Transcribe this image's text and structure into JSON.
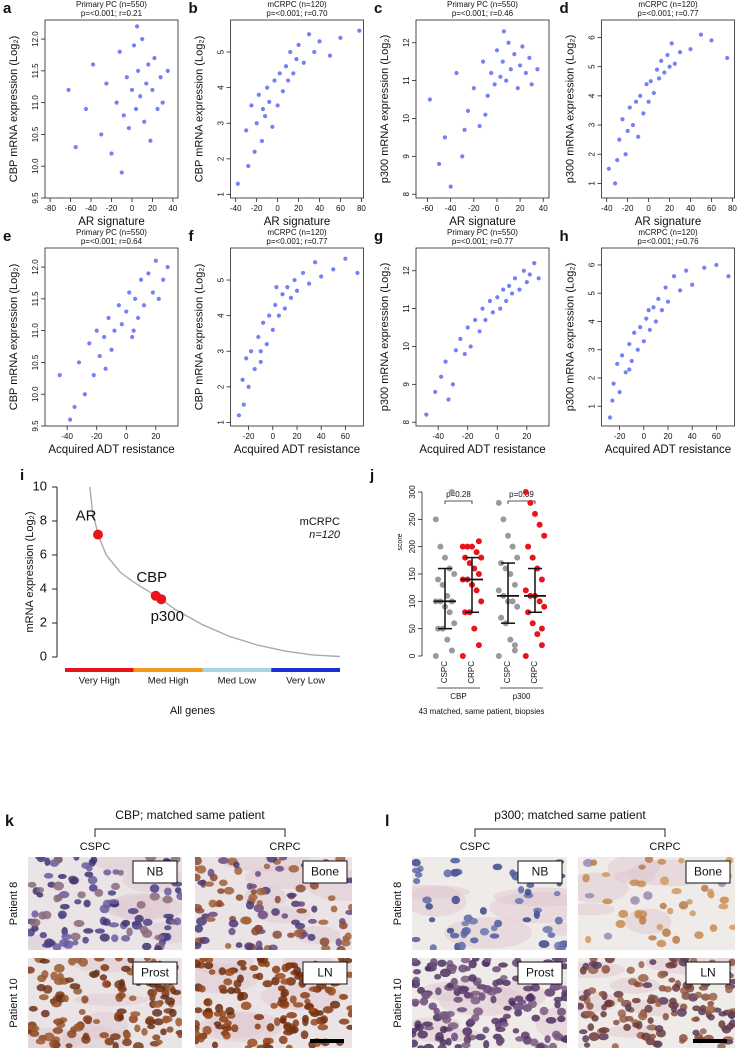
{
  "chart_data": [
    {
      "type": "scatter",
      "letter": "a",
      "title": "Primary PC (n=550)",
      "subtitle": "p=<0.001; r=0.21",
      "xlabel": "AR signature",
      "ylabel": "CBP mRNA expression (Log₂)",
      "color": "#5a6cf0",
      "xlim": [
        -85,
        45
      ],
      "ylim": [
        9.5,
        12.3
      ],
      "xticks": [
        -80,
        -60,
        -40,
        -20,
        0,
        20,
        40
      ],
      "yticks": [
        9.5,
        {
          "value": 10,
          "label": "10.0"
        },
        10.5,
        {
          "value": 11,
          "label": "11.0"
        },
        11.5,
        {
          "value": 12,
          "label": "12.0"
        }
      ],
      "x": [
        -62,
        -45,
        -38,
        -30,
        -25,
        -20,
        -15,
        -12,
        -8,
        -5,
        -3,
        0,
        2,
        4,
        6,
        8,
        10,
        12,
        14,
        16,
        18,
        20,
        22,
        25,
        28,
        30,
        35,
        -55,
        -10,
        5
      ],
      "values": [
        11.2,
        10.9,
        11.6,
        10.5,
        11.3,
        10.2,
        11.0,
        11.8,
        10.8,
        11.4,
        10.6,
        11.2,
        11.9,
        10.9,
        11.5,
        11.1,
        12.0,
        10.7,
        11.3,
        11.6,
        10.4,
        11.2,
        11.7,
        10.9,
        11.4,
        11.0,
        11.5,
        10.3,
        9.9,
        12.2
      ]
    },
    {
      "type": "scatter",
      "letter": "b",
      "title": "mCRPC (n=120)",
      "subtitle": "p=<0.001; r=0.70",
      "xlabel": "AR signature",
      "ylabel": "CBP mRNA expression (Log₂)",
      "color": "#5a6cf0",
      "xlim": [
        -45,
        82
      ],
      "ylim": [
        0.9,
        5.9
      ],
      "xticks": [
        -40,
        -20,
        0,
        20,
        40,
        60,
        80
      ],
      "yticks": [
        1,
        2,
        3,
        4,
        5
      ],
      "x": [
        -38,
        -30,
        -25,
        -22,
        -20,
        -18,
        -15,
        -12,
        -10,
        -8,
        -5,
        -3,
        0,
        2,
        5,
        8,
        10,
        12,
        15,
        18,
        20,
        25,
        30,
        35,
        40,
        50,
        60,
        78,
        -28,
        -14
      ],
      "values": [
        1.3,
        2.8,
        3.5,
        2.2,
        3.0,
        3.8,
        2.5,
        3.2,
        4.0,
        3.6,
        2.9,
        4.2,
        3.5,
        4.4,
        3.9,
        4.6,
        4.2,
        5.0,
        4.4,
        4.8,
        5.2,
        4.7,
        5.5,
        5.0,
        5.3,
        4.9,
        5.4,
        5.6,
        1.8,
        3.4
      ]
    },
    {
      "type": "scatter",
      "letter": "c",
      "title": "Primary PC (n=550)",
      "subtitle": "p=<0.001; r=0.46",
      "xlabel": "AR signature",
      "ylabel": "p300 mRNA expression (Log₂)",
      "color": "#5a6cf0",
      "xlim": [
        -70,
        45
      ],
      "ylim": [
        7.9,
        12.6
      ],
      "xticks": [
        -60,
        -40,
        -20,
        0,
        20,
        40
      ],
      "yticks": [
        8,
        9,
        10,
        11,
        12
      ],
      "x": [
        -58,
        -45,
        -40,
        -35,
        -30,
        -25,
        -20,
        -15,
        -12,
        -8,
        -5,
        -2,
        0,
        3,
        5,
        8,
        10,
        12,
        15,
        18,
        20,
        22,
        25,
        28,
        30,
        35,
        -50,
        -28,
        -10,
        6
      ],
      "values": [
        10.5,
        9.5,
        8.2,
        11.2,
        9.0,
        10.2,
        10.8,
        9.8,
        11.5,
        10.6,
        11.2,
        10.9,
        11.8,
        11.1,
        11.5,
        11.0,
        12.0,
        11.3,
        11.7,
        10.8,
        11.4,
        11.9,
        11.2,
        11.6,
        10.9,
        11.3,
        8.8,
        9.7,
        10.1,
        12.3
      ]
    },
    {
      "type": "scatter",
      "letter": "d",
      "title": "mCRPC (n=120)",
      "subtitle": "p=<0.001; r=0.77",
      "xlabel": "AR signature",
      "ylabel": "p300 mRNA expression (Log₂)",
      "color": "#5a6cf0",
      "xlim": [
        -45,
        82
      ],
      "ylim": [
        0.5,
        6.6
      ],
      "xticks": [
        -40,
        -20,
        0,
        20,
        40,
        60,
        80
      ],
      "yticks": [
        1,
        2,
        3,
        4,
        5,
        6
      ],
      "x": [
        -38,
        -32,
        -28,
        -25,
        -22,
        -20,
        -18,
        -15,
        -12,
        -10,
        -8,
        -5,
        -2,
        0,
        2,
        5,
        8,
        10,
        12,
        15,
        18,
        20,
        22,
        25,
        30,
        40,
        50,
        60,
        75,
        -30
      ],
      "values": [
        1.5,
        1.0,
        2.5,
        3.2,
        2.0,
        2.8,
        3.6,
        3.0,
        3.8,
        2.6,
        4.0,
        3.4,
        4.4,
        3.8,
        4.5,
        4.1,
        4.9,
        4.6,
        5.2,
        4.8,
        5.4,
        5.0,
        5.8,
        5.1,
        5.5,
        5.6,
        6.1,
        5.9,
        5.3,
        1.8
      ]
    },
    {
      "type": "scatter",
      "letter": "e",
      "title": "Primary PC (n=550)",
      "subtitle": "p=<0.001; r=0.64",
      "xlabel": "Acquired ADT resistance",
      "ylabel": "CBP mRNA expression (Log₂)",
      "color": "#5a6cf0",
      "xlim": [
        -55,
        35
      ],
      "ylim": [
        9.5,
        12.3
      ],
      "xticks": [
        -40,
        -20,
        0,
        20
      ],
      "yticks": [
        9.5,
        {
          "value": 10,
          "label": "10.0"
        },
        10.5,
        {
          "value": 11,
          "label": "11.0"
        },
        11.5,
        {
          "value": 12,
          "label": "12.0"
        }
      ],
      "x": [
        -45,
        -38,
        -32,
        -28,
        -25,
        -22,
        -20,
        -18,
        -15,
        -12,
        -10,
        -8,
        -5,
        -3,
        0,
        2,
        4,
        6,
        8,
        10,
        12,
        15,
        18,
        20,
        22,
        25,
        28,
        -35,
        -14,
        5
      ],
      "values": [
        10.3,
        9.6,
        10.5,
        10.0,
        10.8,
        10.3,
        11.0,
        10.6,
        10.9,
        11.2,
        10.7,
        11.0,
        11.4,
        11.1,
        11.3,
        11.6,
        10.9,
        11.5,
        11.2,
        11.8,
        11.4,
        11.9,
        11.6,
        12.1,
        11.5,
        11.8,
        12.0,
        9.8,
        10.4,
        11.0
      ]
    },
    {
      "type": "scatter",
      "letter": "f",
      "title": "mCRPC (n=120)",
      "subtitle": "p=<0.001; r=0.77",
      "xlabel": "Acquired ADT resistance",
      "ylabel": "CBP mRNA expression (Log₂)",
      "color": "#5a6cf0",
      "xlim": [
        -35,
        75
      ],
      "ylim": [
        0.9,
        5.9
      ],
      "xticks": [
        -20,
        0,
        20,
        40,
        60
      ],
      "yticks": [
        1,
        2,
        3,
        4,
        5
      ],
      "x": [
        -28,
        -25,
        -22,
        -20,
        -18,
        -15,
        -12,
        -10,
        -8,
        -5,
        -3,
        0,
        2,
        5,
        8,
        10,
        12,
        15,
        18,
        20,
        25,
        30,
        35,
        40,
        50,
        60,
        70,
        -24,
        -10,
        3
      ],
      "values": [
        1.2,
        2.2,
        2.8,
        2.0,
        3.0,
        2.5,
        3.4,
        3.0,
        3.8,
        3.2,
        4.0,
        3.6,
        4.3,
        4.0,
        4.6,
        4.2,
        4.8,
        4.5,
        5.0,
        4.7,
        5.2,
        4.9,
        5.5,
        5.1,
        5.3,
        5.6,
        5.2,
        1.5,
        2.7,
        4.8
      ]
    },
    {
      "type": "scatter",
      "letter": "g",
      "title": "Primary PC (n=550)",
      "subtitle": "p=<0.001; r=0.77",
      "xlabel": "Acquired ADT resistance",
      "ylabel": "p300 mRNA expression (Log₂)",
      "color": "#5a6cf0",
      "xlim": [
        -55,
        35
      ],
      "ylim": [
        7.9,
        12.6
      ],
      "xticks": [
        -40,
        -20,
        0,
        20
      ],
      "yticks": [
        8,
        9,
        10,
        11,
        12
      ],
      "x": [
        -48,
        -42,
        -38,
        -35,
        -30,
        -28,
        -25,
        -22,
        -20,
        -18,
        -15,
        -12,
        -10,
        -8,
        -5,
        -3,
        0,
        2,
        4,
        6,
        8,
        10,
        12,
        15,
        18,
        20,
        22,
        25,
        28,
        -33
      ],
      "values": [
        8.2,
        8.8,
        9.2,
        9.6,
        9.0,
        9.9,
        10.2,
        9.8,
        10.5,
        10.0,
        10.7,
        10.4,
        11.0,
        10.7,
        11.2,
        10.9,
        11.3,
        11.0,
        11.5,
        11.2,
        11.6,
        11.4,
        11.8,
        11.5,
        12.0,
        11.7,
        11.9,
        12.2,
        11.8,
        8.6
      ]
    },
    {
      "type": "scatter",
      "letter": "h",
      "title": "mCRPC (n=120)",
      "subtitle": "p=<0.001; r=0.76",
      "xlabel": "Acquired ADT resistance",
      "ylabel": "p300 mRNA expression (Log₂)",
      "color": "#5a6cf0",
      "xlim": [
        -35,
        75
      ],
      "ylim": [
        0.3,
        6.6
      ],
      "xticks": [
        -20,
        0,
        20,
        40,
        60
      ],
      "yticks": [
        1,
        2,
        3,
        4,
        5,
        6
      ],
      "x": [
        -28,
        -25,
        -22,
        -20,
        -18,
        -15,
        -12,
        -10,
        -8,
        -5,
        -3,
        0,
        2,
        5,
        8,
        10,
        12,
        15,
        18,
        20,
        25,
        30,
        35,
        40,
        50,
        60,
        70,
        -26,
        -12,
        4
      ],
      "values": [
        0.6,
        1.8,
        2.5,
        1.5,
        2.8,
        2.2,
        3.2,
        2.6,
        3.6,
        3.0,
        3.8,
        3.3,
        4.1,
        3.7,
        4.5,
        4.0,
        4.8,
        4.4,
        5.2,
        4.7,
        5.6,
        5.1,
        5.8,
        5.3,
        5.9,
        6.0,
        5.6,
        1.2,
        2.3,
        4.4
      ]
    },
    {
      "type": "line",
      "letter": "i",
      "ylabel": "mRNA expression (Log₂)",
      "xlabel": "All genes",
      "annotation": "mCRPC",
      "subannotation": "n=120",
      "color": "#aaaaaa",
      "xlim": [
        0,
        100
      ],
      "ylim": [
        0,
        10
      ],
      "yticks": [
        0,
        2,
        4,
        6,
        8,
        10
      ],
      "x": [
        9,
        10,
        12,
        15,
        20,
        25,
        30,
        35,
        40,
        50,
        60,
        70,
        80,
        90,
        100
      ],
      "values": [
        10,
        8.6,
        7.2,
        6.0,
        5.0,
        4.4,
        3.9,
        3.4,
        2.8,
        1.9,
        1.2,
        0.7,
        0.35,
        0.12,
        0.03
      ],
      "highlight_color": "#e8141b",
      "highlights": [
        {
          "label": "AR",
          "x": 12,
          "value": 7.2
        },
        {
          "label": "CBP",
          "x": 33,
          "value": 3.6
        },
        {
          "label": "p300",
          "x": 35,
          "value": 3.4
        }
      ],
      "bands": [
        {
          "label": "Very High",
          "color": "#e8141b",
          "xlim": [
            0,
            25
          ]
        },
        {
          "label": "Med High",
          "color": "#f39a1e",
          "xlim": [
            25,
            50
          ]
        },
        {
          "label": "Med Low",
          "color": "#a9d3e6",
          "xlim": [
            50,
            75
          ]
        },
        {
          "label": "Very Low",
          "color": "#1f2fd8",
          "xlim": [
            75,
            100
          ]
        }
      ]
    },
    {
      "type": "dot",
      "letter": "j",
      "ylabel": "score",
      "caption": "43 matched, same patient, biopsies",
      "ylim": [
        0,
        300
      ],
      "yticks": [
        0,
        50,
        100,
        150,
        200,
        250,
        300
      ],
      "sets": [
        {
          "label": "CBP",
          "comparison": "p=0.28",
          "groups": [
            {
              "label": "CSPC",
              "color": "#9a9a9a",
              "median": 100,
              "q1": 50,
              "q3": 160,
              "values": [
                0,
                10,
                30,
                50,
                50,
                60,
                80,
                90,
                100,
                100,
                100,
                110,
                130,
                140,
                150,
                160,
                180,
                200,
                250,
                300
              ]
            },
            {
              "label": "CRPC",
              "color": "#e8141b",
              "median": 140,
              "q1": 80,
              "q3": 180,
              "values": [
                0,
                20,
                50,
                80,
                80,
                100,
                120,
                130,
                140,
                140,
                150,
                160,
                170,
                180,
                180,
                190,
                200,
                200,
                200,
                210
              ]
            }
          ]
        },
        {
          "label": "p300",
          "comparison": "p=0.09",
          "groups": [
            {
              "label": "CSPC",
              "color": "#9a9a9a",
              "median": 110,
              "q1": 60,
              "q3": 170,
              "values": [
                0,
                10,
                30,
                60,
                70,
                90,
                100,
                100,
                110,
                120,
                130,
                150,
                160,
                170,
                180,
                200,
                220,
                250,
                280,
                20
              ]
            },
            {
              "label": "CRPC",
              "color": "#e8141b",
              "median": 110,
              "q1": 80,
              "q3": 160,
              "values": [
                0,
                20,
                40,
                60,
                80,
                90,
                100,
                110,
                110,
                120,
                140,
                160,
                180,
                200,
                220,
                240,
                260,
                280,
                300,
                50
              ]
            }
          ]
        }
      ]
    }
  ],
  "ihc_panels": [
    {
      "letter": "k",
      "title": "CBP; matched same patient",
      "columns": [
        "CSPC",
        "CRPC"
      ],
      "rows": [
        "Patient 8",
        "Patient 10"
      ],
      "tiles": [
        [
          "NB",
          "Bone"
        ],
        [
          "Prost",
          "LN"
        ]
      ]
    },
    {
      "letter": "l",
      "title": "p300; matched same patient",
      "columns": [
        "CSPC",
        "CRPC"
      ],
      "rows": [
        "Patient 8",
        "Patient 10"
      ],
      "tiles": [
        [
          "NB",
          "Bone"
        ],
        [
          "Prost",
          "LN"
        ]
      ]
    }
  ]
}
